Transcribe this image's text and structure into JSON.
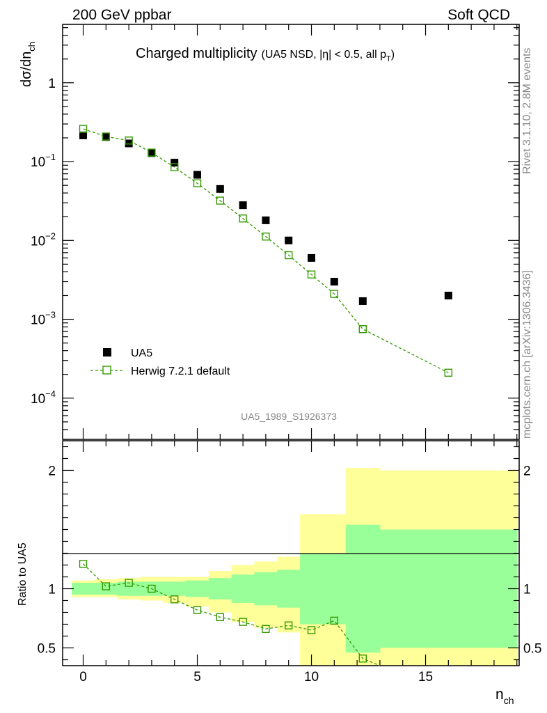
{
  "header": {
    "left": "200 GeV ppbar",
    "right": "Soft QCD"
  },
  "side_labels": {
    "rivet": "Rivet 3.1.10,  2.8M events",
    "mcplots": "mcplots.cern.ch [arXiv:1306.3436]"
  },
  "plot_title": {
    "main": "Charged multiplicity",
    "sub_prefix": "(UA5 NSD, |η| < 0.5, all p",
    "sub_sub": "T",
    "sub_suffix": ")"
  },
  "watermark": "UA5_1989_S1926373",
  "colors": {
    "mc": "#339900",
    "band_outer": "#ffff99",
    "band_inner": "#99ff99"
  },
  "chart_data": [
    {
      "type": "scatter",
      "title": "Charged multiplicity",
      "ylabel_main": "dσ/dn",
      "ylabel_sub": "ch",
      "xlabel_main": "n",
      "xlabel_sub": "ch",
      "yscale": "log",
      "xlim": [
        -0.9,
        19.1
      ],
      "ylim": [
        3e-05,
        5.5
      ],
      "x_ticks": [
        0,
        5,
        10,
        15
      ],
      "y_ticks": [
        {
          "value": 1,
          "base": "1",
          "exp": ""
        },
        {
          "value": 0.1,
          "base": "10",
          "exp": "−1"
        },
        {
          "value": 0.01,
          "base": "10",
          "exp": "−2"
        },
        {
          "value": 0.001,
          "base": "10",
          "exp": "−3"
        },
        {
          "value": 0.0001,
          "base": "10",
          "exp": "−4"
        }
      ],
      "legend": [
        {
          "label": "UA5",
          "marker": "filled-square"
        },
        {
          "label": "Herwig 7.2.1 default",
          "marker": "open-square-dashed"
        }
      ],
      "series": [
        {
          "name": "UA5",
          "x": [
            0,
            1,
            2,
            3,
            4,
            5,
            6,
            7,
            8,
            9,
            10,
            11,
            12.25,
            16
          ],
          "y": [
            0.215,
            0.205,
            0.17,
            0.128,
            0.097,
            0.068,
            0.045,
            0.028,
            0.018,
            0.01,
            0.006,
            0.003,
            0.0017,
            0.002
          ]
        },
        {
          "name": "Herwig 7.2.1 default",
          "x": [
            0,
            1,
            2,
            3,
            4,
            5,
            6,
            7,
            8,
            9,
            10,
            11,
            12.25,
            16
          ],
          "y": [
            0.26,
            0.208,
            0.185,
            0.13,
            0.085,
            0.053,
            0.032,
            0.019,
            0.0112,
            0.0065,
            0.0037,
            0.0021,
            0.00075,
            0.00021
          ]
        }
      ]
    },
    {
      "type": "line",
      "ylabel": "Ratio to UA5",
      "xlabel_main": "n",
      "xlabel_sub": "ch",
      "xlim": [
        -0.9,
        19.1
      ],
      "ylim": [
        0.35,
        2.25
      ],
      "x_ticks": [
        0,
        5,
        10,
        15
      ],
      "y_ticks": [
        {
          "value": 0.5,
          "label": "0.5"
        },
        {
          "value": 1,
          "label": "1"
        },
        {
          "value": 2,
          "label": "2"
        }
      ],
      "bands": [
        {
          "x0": -0.5,
          "x1": 0.5,
          "inner": [
            0.95,
            1.05
          ],
          "outer": [
            0.93,
            1.07
          ]
        },
        {
          "x0": 0.5,
          "x1": 1.5,
          "inner": [
            0.95,
            1.05
          ],
          "outer": [
            0.93,
            1.08
          ]
        },
        {
          "x0": 1.5,
          "x1": 2.5,
          "inner": [
            0.94,
            1.06
          ],
          "outer": [
            0.91,
            1.09
          ]
        },
        {
          "x0": 2.5,
          "x1": 3.5,
          "inner": [
            0.94,
            1.06
          ],
          "outer": [
            0.9,
            1.1
          ]
        },
        {
          "x0": 3.5,
          "x1": 4.5,
          "inner": [
            0.94,
            1.06
          ],
          "outer": [
            0.88,
            1.1
          ]
        },
        {
          "x0": 4.5,
          "x1": 5.5,
          "inner": [
            0.93,
            1.07
          ],
          "outer": [
            0.85,
            1.1
          ]
        },
        {
          "x0": 5.5,
          "x1": 6.5,
          "inner": [
            0.91,
            1.09
          ],
          "outer": [
            0.8,
            1.15
          ]
        },
        {
          "x0": 6.5,
          "x1": 7.5,
          "inner": [
            0.88,
            1.12
          ],
          "outer": [
            0.72,
            1.2
          ]
        },
        {
          "x0": 7.5,
          "x1": 8.5,
          "inner": [
            0.86,
            1.14
          ],
          "outer": [
            0.67,
            1.23
          ]
        },
        {
          "x0": 8.5,
          "x1": 9.5,
          "inner": [
            0.84,
            1.16
          ],
          "outer": [
            0.63,
            1.27
          ]
        },
        {
          "x0": 9.5,
          "x1": 11.5,
          "inner": [
            0.7,
            1.3
          ],
          "outer": [
            0.35,
            1.63
          ]
        },
        {
          "x0": 11.5,
          "x1": 13,
          "inner": [
            0.46,
            1.54
          ],
          "outer": [
            0.35,
            2.02
          ]
        },
        {
          "x0": 13,
          "x1": 19,
          "inner": [
            0.5,
            1.5
          ],
          "outer": [
            0.35,
            2.0
          ]
        }
      ],
      "series": [
        {
          "name": "Herwig 7.2.1 default / UA5",
          "x": [
            0,
            1,
            2,
            3,
            4,
            5,
            6,
            7,
            8,
            9,
            10,
            11,
            12.25,
            13
          ],
          "y": [
            1.21,
            1.02,
            1.05,
            1.0,
            0.91,
            0.82,
            0.76,
            0.72,
            0.66,
            0.69,
            0.65,
            0.73,
            0.41,
            0.35
          ]
        }
      ]
    }
  ]
}
